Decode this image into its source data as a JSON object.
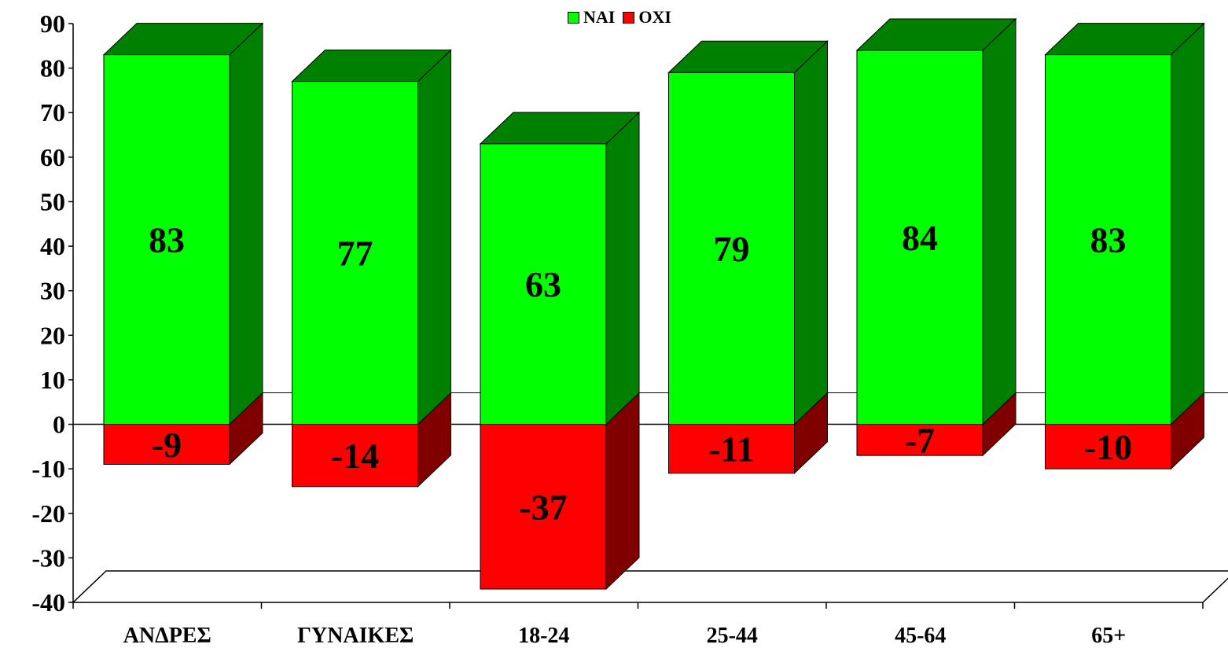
{
  "chart_data": {
    "type": "bar",
    "stacked": true,
    "three_d": true,
    "categories": [
      "ΑΝΔΡΕΣ",
      "ΓΥΝΑΙΚΕΣ",
      "18-24",
      "25-44",
      "45-64",
      "65+"
    ],
    "series": [
      {
        "name": "ΝΑΙ",
        "values": [
          83,
          77,
          63,
          79,
          84,
          83
        ],
        "color": "#00ff00",
        "side_color": "#008000"
      },
      {
        "name": "ΟΧΙ",
        "values": [
          -9,
          -14,
          -37,
          -11,
          -7,
          -10
        ],
        "color": "#ff0000",
        "side_color": "#800000"
      }
    ],
    "data_labels": {
      "yes": [
        "83",
        "77",
        "63",
        "79",
        "84",
        "83"
      ],
      "no": [
        "-9",
        "-14",
        "-37",
        "-11",
        "-7",
        "-10"
      ]
    },
    "yticks": [
      "90",
      "80",
      "70",
      "60",
      "50",
      "40",
      "30",
      "20",
      "10",
      "0",
      "-10",
      "-20",
      "-30",
      "-40"
    ],
    "ylim": [
      -40,
      90
    ],
    "legend_position": "top-center",
    "grid": false
  }
}
